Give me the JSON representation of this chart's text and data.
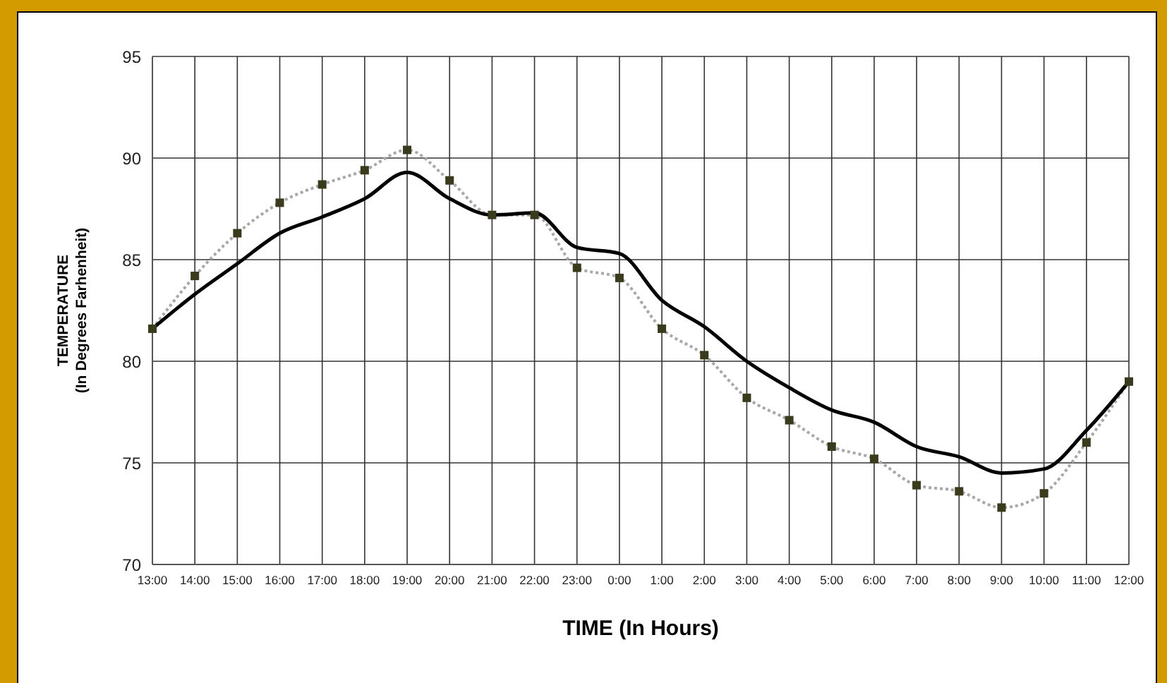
{
  "chart_data": {
    "type": "line",
    "xlabel": "TIME (In Hours)",
    "ylabel": "TEMPERATURE\n(In Degrees Farhenheit)",
    "categories": [
      "13:00",
      "14:00",
      "15:00",
      "16:00",
      "17:00",
      "18:00",
      "19:00",
      "20:00",
      "21:00",
      "22:00",
      "23:00",
      "0:00",
      "1:00",
      "2:00",
      "3:00",
      "4:00",
      "5:00",
      "6:00",
      "7:00",
      "8:00",
      "9:00",
      "10:00",
      "11:00",
      "12:00"
    ],
    "series": [
      {
        "color": "#000000",
        "marker": "none",
        "line_style": "solid",
        "values": [
          81.6,
          83.3,
          84.8,
          86.3,
          87.1,
          88.0,
          89.3,
          88.0,
          87.2,
          87.3,
          85.6,
          85.3,
          83.0,
          81.7,
          80.0,
          78.7,
          77.6,
          77.0,
          75.8,
          75.3,
          74.5,
          74.7,
          76.6,
          79.0
        ]
      },
      {
        "color": "#a8a8a8",
        "marker": "square",
        "line_style": "dotted",
        "values": [
          81.6,
          84.2,
          86.3,
          87.8,
          88.7,
          89.4,
          90.4,
          88.9,
          87.2,
          87.2,
          84.6,
          84.1,
          81.6,
          80.3,
          78.2,
          77.1,
          75.8,
          75.2,
          73.9,
          73.6,
          72.8,
          73.5,
          76.0,
          79.0
        ]
      }
    ],
    "ylim": [
      70,
      95
    ],
    "yticks": [
      70,
      75,
      80,
      85,
      90,
      95
    ],
    "grid": true,
    "legend": false
  }
}
